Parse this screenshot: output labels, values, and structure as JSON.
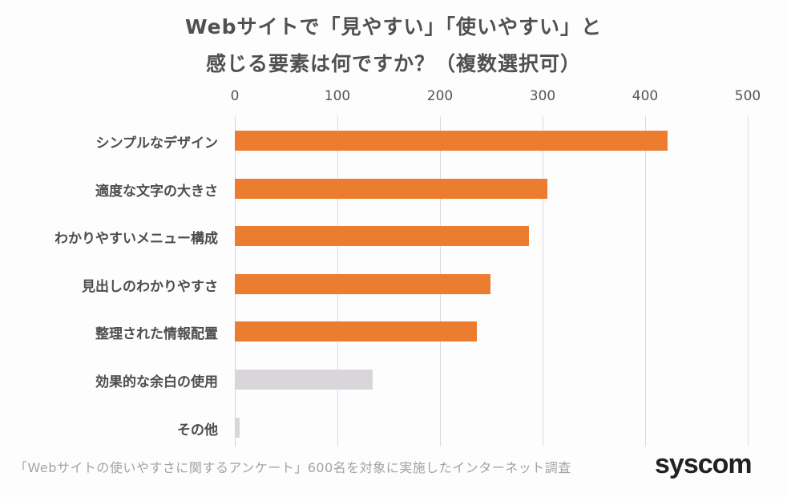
{
  "title": {
    "line1": "Webサイトで「見やすい」「使いやすい」と",
    "line2": "感じる要素は何ですか？（複数選択可）"
  },
  "footer": {
    "note": "「Webサイトの使いやすさに関するアンケート」600名を対象に実施したインターネット調査",
    "logo": "syscom"
  },
  "colors": {
    "highlight": "#ec7c30",
    "muted": "#d8d6da",
    "grid": "#dcd8de"
  },
  "chart_data": {
    "type": "bar",
    "orientation": "horizontal",
    "title": "Webサイトで「見やすい」「使いやすい」と感じる要素は何ですか？（複数選択可）",
    "xlabel": "",
    "ylabel": "",
    "xlim": [
      0,
      500
    ],
    "x_ticks": [
      "0",
      "100",
      "200",
      "300",
      "400",
      "500"
    ],
    "grid": true,
    "legend": null,
    "categories": [
      "シンプルなデザイン",
      "適度な文字の大きさ",
      "わかりやすいメニュー構成",
      "見出しのわかりやすさ",
      "整理された情報配置",
      "効果的な余白の使用",
      "その他"
    ],
    "values": [
      422,
      305,
      287,
      249,
      236,
      134,
      5
    ],
    "bar_colors": [
      "#ec7c30",
      "#ec7c30",
      "#ec7c30",
      "#ec7c30",
      "#ec7c30",
      "#d8d6da",
      "#d8d6da"
    ]
  }
}
